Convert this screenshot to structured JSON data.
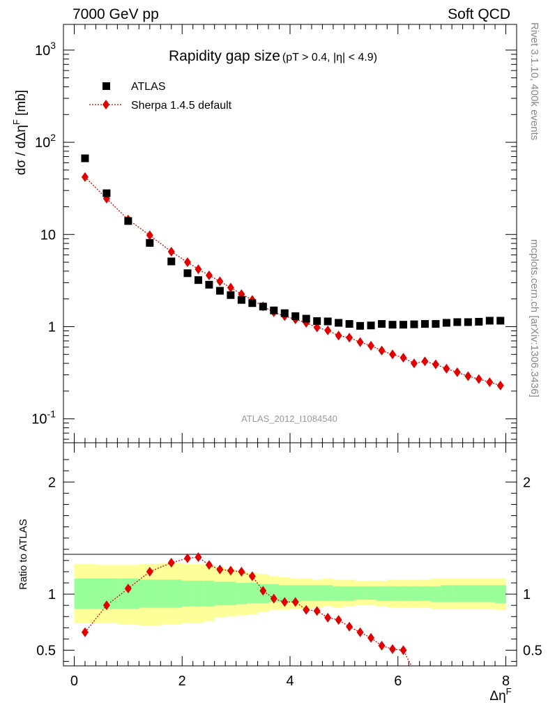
{
  "header": {
    "left": "7000 GeV pp",
    "right": "Soft QCD"
  },
  "title_main": "Rapidity gap size",
  "title_cuts": "(pT > 0.4, |η| < 4.9)",
  "side_text_top": "Rivet 3.1.10,  400k events",
  "side_text_bottom": "mcplots.cern.ch [arXiv:1306.3436]",
  "watermark": "ATLAS_2012_I1084540",
  "legend": {
    "data_label": "ATLAS",
    "mc_label": "Sherpa 1.4.5 default"
  },
  "colors": {
    "mc": "#e00000",
    "band_inner": "#99ff99",
    "band_outer": "#ffff99",
    "data": "#000000"
  },
  "chart_data": [
    {
      "type": "scatter",
      "panel": "main",
      "ylabel": "dσ / dΔη^F [mb]",
      "yscale": "log",
      "ylim": [
        0.055,
        1900
      ],
      "xlim": [
        -0.2,
        8.2
      ],
      "ytick_labels": [
        "10^-1",
        "1",
        "10",
        "10^2",
        "10^3"
      ],
      "x": [
        0.2,
        0.6,
        1.0,
        1.4,
        1.8,
        2.1,
        2.3,
        2.5,
        2.7,
        2.9,
        3.1,
        3.3,
        3.5,
        3.7,
        3.9,
        4.1,
        4.3,
        4.5,
        4.7,
        4.9,
        5.1,
        5.3,
        5.5,
        5.7,
        5.9,
        6.1,
        6.3,
        6.5,
        6.7,
        6.9,
        7.1,
        7.3,
        7.5,
        7.7,
        7.9
      ],
      "series": [
        {
          "name": "ATLAS",
          "values": [
            67,
            28,
            14,
            8.1,
            5.1,
            3.8,
            3.2,
            2.85,
            2.45,
            2.2,
            1.95,
            1.8,
            1.65,
            1.5,
            1.4,
            1.3,
            1.22,
            1.15,
            1.14,
            1.1,
            1.07,
            1.02,
            1.03,
            1.07,
            1.05,
            1.05,
            1.06,
            1.07,
            1.07,
            1.1,
            1.12,
            1.12,
            1.13,
            1.16,
            1.16
          ]
        },
        {
          "name": "Sherpa 1.4.5 default",
          "values": [
            42,
            24.5,
            14.5,
            9.8,
            6.5,
            5.0,
            4.2,
            3.6,
            3.1,
            2.65,
            2.25,
            1.95,
            1.66,
            1.43,
            1.3,
            1.2,
            1.1,
            0.98,
            0.91,
            0.8,
            0.76,
            0.68,
            0.62,
            0.55,
            0.5,
            0.46,
            0.4,
            0.42,
            0.39,
            0.35,
            0.32,
            0.29,
            0.27,
            0.25,
            0.23
          ]
        }
      ]
    },
    {
      "type": "scatter",
      "panel": "ratio",
      "ylabel": "Ratio to ATLAS",
      "xlabel": "Δη^F",
      "ylim": [
        0.36,
        2.35
      ],
      "xlim": [
        -0.2,
        8.2
      ],
      "xticks": [
        0,
        2,
        4,
        6,
        8
      ],
      "ytick_labels": [
        "0.5",
        "1",
        "2"
      ],
      "x": [
        0.2,
        0.6,
        1.0,
        1.4,
        1.8,
        2.1,
        2.3,
        2.5,
        2.7,
        2.9,
        3.1,
        3.3,
        3.5,
        3.7,
        3.9,
        4.1,
        4.3,
        4.5,
        4.7,
        4.9,
        5.1,
        5.3,
        5.5,
        5.7,
        5.9,
        6.1
      ],
      "series": [
        {
          "name": "Sherpa 1.4.5 default",
          "values": [
            0.66,
            0.9,
            1.05,
            1.2,
            1.28,
            1.32,
            1.33,
            1.26,
            1.22,
            1.21,
            1.2,
            1.16,
            1.03,
            0.96,
            0.93,
            0.93,
            0.86,
            0.85,
            0.79,
            0.77,
            0.71,
            0.66,
            0.61,
            0.54,
            0.51,
            0.5
          ]
        }
      ],
      "band_edges": [
        0,
        0.4,
        0.8,
        1.2,
        1.6,
        2.0,
        2.2,
        2.4,
        2.6,
        2.8,
        3.0,
        3.2,
        3.4,
        3.6,
        3.8,
        4.0,
        4.2,
        4.4,
        4.6,
        4.8,
        5.0,
        5.2,
        5.4,
        5.6,
        5.8,
        6.0,
        6.2,
        6.4,
        6.6,
        6.8,
        7.0,
        7.2,
        7.4,
        7.6,
        7.8,
        8.0
      ],
      "band_inner_low": [
        0.87,
        0.87,
        0.87,
        0.88,
        0.88,
        0.89,
        0.89,
        0.89,
        0.9,
        0.9,
        0.91,
        0.92,
        0.92,
        0.93,
        0.93,
        0.93,
        0.94,
        0.94,
        0.94,
        0.94,
        0.94,
        0.95,
        0.95,
        0.94,
        0.94,
        0.94,
        0.94,
        0.94,
        0.93,
        0.93,
        0.93,
        0.93,
        0.93,
        0.93,
        0.92
      ],
      "band_inner_high": [
        1.14,
        1.14,
        1.14,
        1.13,
        1.13,
        1.12,
        1.12,
        1.12,
        1.11,
        1.11,
        1.1,
        1.1,
        1.09,
        1.09,
        1.08,
        1.08,
        1.08,
        1.08,
        1.08,
        1.07,
        1.07,
        1.07,
        1.07,
        1.07,
        1.07,
        1.07,
        1.07,
        1.07,
        1.07,
        1.08,
        1.08,
        1.08,
        1.08,
        1.08,
        1.08
      ],
      "band_outer_low": [
        0.74,
        0.74,
        0.73,
        0.72,
        0.73,
        0.74,
        0.74,
        0.76,
        0.79,
        0.8,
        0.81,
        0.82,
        0.84,
        0.86,
        0.86,
        0.87,
        0.87,
        0.88,
        0.89,
        0.88,
        0.89,
        0.9,
        0.9,
        0.89,
        0.88,
        0.88,
        0.88,
        0.88,
        0.87,
        0.87,
        0.87,
        0.87,
        0.87,
        0.87,
        0.86
      ],
      "band_outer_high": [
        1.27,
        1.26,
        1.26,
        1.27,
        1.28,
        1.27,
        1.27,
        1.26,
        1.24,
        1.22,
        1.2,
        1.19,
        1.18,
        1.16,
        1.15,
        1.14,
        1.14,
        1.13,
        1.14,
        1.13,
        1.13,
        1.12,
        1.12,
        1.12,
        1.13,
        1.13,
        1.13,
        1.13,
        1.14,
        1.14,
        1.14,
        1.14,
        1.14,
        1.14,
        1.14
      ]
    }
  ]
}
